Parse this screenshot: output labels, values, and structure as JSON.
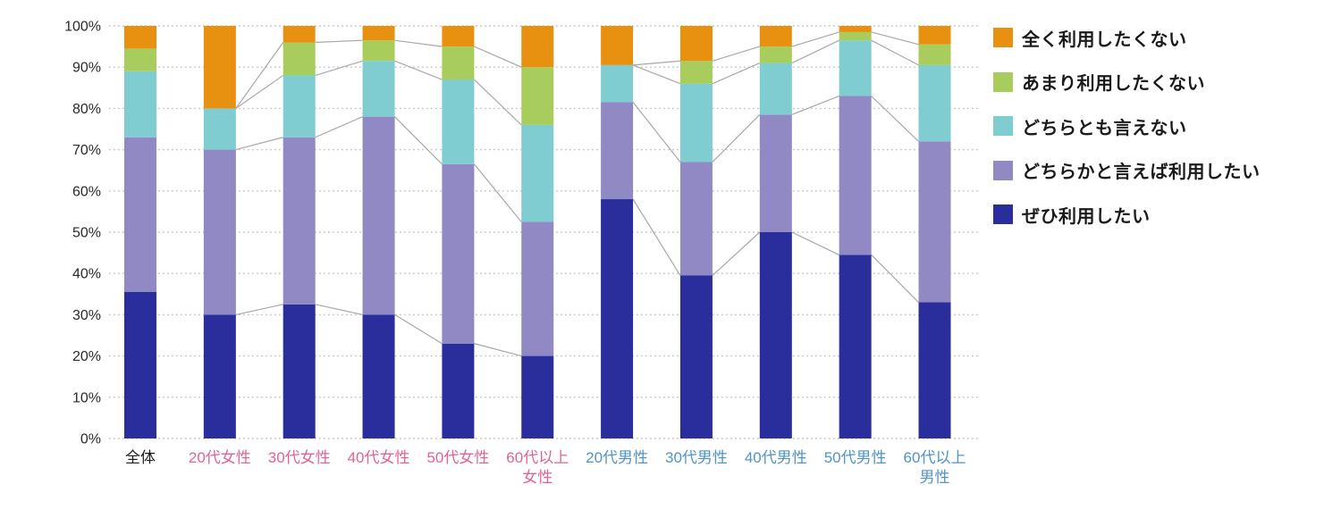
{
  "chart_data": {
    "type": "bar",
    "subtype": "stacked-percent-column",
    "title": "",
    "xlabel": "",
    "ylabel": "",
    "ylim": [
      0,
      100
    ],
    "y_tick_labels": [
      "0%",
      "10%",
      "20%",
      "30%",
      "40%",
      "50%",
      "60%",
      "70%",
      "80%",
      "90%",
      "100%"
    ],
    "grid": "horizontal-dotted",
    "legend_position": "right",
    "categories": [
      {
        "lines": [
          "全体"
        ],
        "color": "#1b1b1b"
      },
      {
        "lines": [
          "20代女性"
        ],
        "color": "#e06397"
      },
      {
        "lines": [
          "30代女性"
        ],
        "color": "#e06397"
      },
      {
        "lines": [
          "40代女性"
        ],
        "color": "#e06397"
      },
      {
        "lines": [
          "50代女性"
        ],
        "color": "#e06397"
      },
      {
        "lines": [
          "60代以上",
          "女性"
        ],
        "color": "#e06397"
      },
      {
        "lines": [
          "20代男性"
        ],
        "color": "#4f94c6"
      },
      {
        "lines": [
          "30代男性"
        ],
        "color": "#4f94c6"
      },
      {
        "lines": [
          "40代男性"
        ],
        "color": "#4f94c6"
      },
      {
        "lines": [
          "50代男性"
        ],
        "color": "#4f94c6"
      },
      {
        "lines": [
          "60代以上",
          "男性"
        ],
        "color": "#4f94c6"
      }
    ],
    "series": [
      {
        "name": "ぜひ利用したい",
        "color": "#2a2e9c",
        "values": [
          35.5,
          30,
          32.5,
          30,
          23,
          20,
          58,
          39.5,
          50,
          44.5,
          33
        ]
      },
      {
        "name": "どちらかと言えば利用したい",
        "color": "#9189c3",
        "values": [
          37.5,
          40,
          40.5,
          48,
          43.5,
          32.5,
          23.5,
          27.5,
          28.5,
          38.5,
          39
        ]
      },
      {
        "name": "どちらとも言えない",
        "color": "#7fccd1",
        "values": [
          16,
          10,
          15,
          13.5,
          20.5,
          23.5,
          9,
          19,
          12.5,
          13.5,
          18.5
        ]
      },
      {
        "name": "あまり利用したくない",
        "color": "#a8cd5d",
        "values": [
          5.5,
          0,
          8,
          5,
          8,
          14,
          0,
          5.5,
          4,
          2,
          5
        ]
      },
      {
        "name": "全く利用したくない",
        "color": "#e89110",
        "values": [
          5.5,
          20,
          4,
          3.5,
          5,
          10,
          9.5,
          8.5,
          5,
          1.5,
          4.5
        ]
      }
    ],
    "legend_order_top_to_bottom": [
      4,
      3,
      2,
      1,
      0
    ],
    "connector_chains": [
      [
        1,
        2,
        3,
        4,
        5
      ],
      [
        6,
        7,
        8,
        9,
        10
      ]
    ],
    "styles": {
      "grid_color": "#c5c5c5",
      "connector_color": "#a8a8a8",
      "axis_text_color": "#2a2a2a",
      "background": "#ffffff"
    }
  }
}
